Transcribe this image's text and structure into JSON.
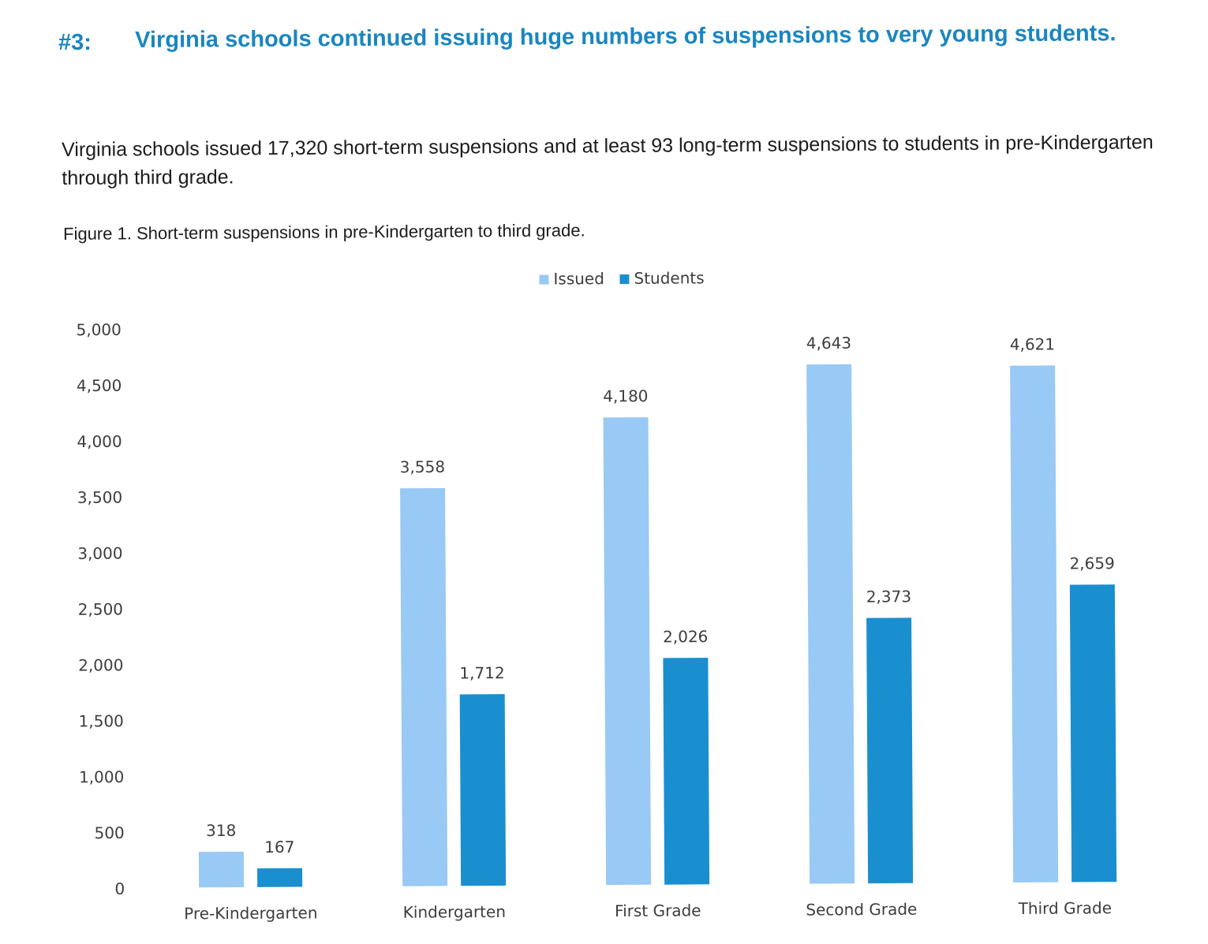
{
  "heading": {
    "number": "#3:",
    "text": "Virginia schools continued issuing huge numbers of suspensions to very young students."
  },
  "intro": "Virginia schools issued 17,320 short-term suspensions and at least 93 long-term suspensions to students in pre-Kindergarten through third grade.",
  "figure_caption": "Figure 1. Short-term suspensions in pre-Kindergarten to third grade.",
  "colors": {
    "issued": "#99c9f5",
    "students": "#1a8fd0"
  },
  "chart_data": {
    "type": "bar",
    "title": "",
    "xlabel": "",
    "ylabel": "",
    "categories": [
      "Pre-Kindergarten",
      "Kindergarten",
      "First Grade",
      "Second Grade",
      "Third Grade"
    ],
    "series": [
      {
        "name": "Issued",
        "values": [
          318,
          3558,
          4180,
          4643,
          4621
        ]
      },
      {
        "name": "Students",
        "values": [
          167,
          1712,
          2026,
          2373,
          2659
        ]
      }
    ],
    "data_labels": [
      [
        "318",
        "3,558",
        "4,180",
        "4,643",
        "4,621"
      ],
      [
        "167",
        "1,712",
        "2,026",
        "2,373",
        "2,659"
      ]
    ],
    "ylim": [
      0,
      5000
    ],
    "yticks": [
      0,
      500,
      1000,
      1500,
      2000,
      2500,
      3000,
      3500,
      4000,
      4500,
      5000
    ],
    "ytick_labels": [
      "0",
      "500",
      "1,000",
      "1,500",
      "2,000",
      "2,500",
      "3,000",
      "3,500",
      "4,000",
      "4,500",
      "5,000"
    ],
    "legend_position": "top-center",
    "grid": false
  }
}
